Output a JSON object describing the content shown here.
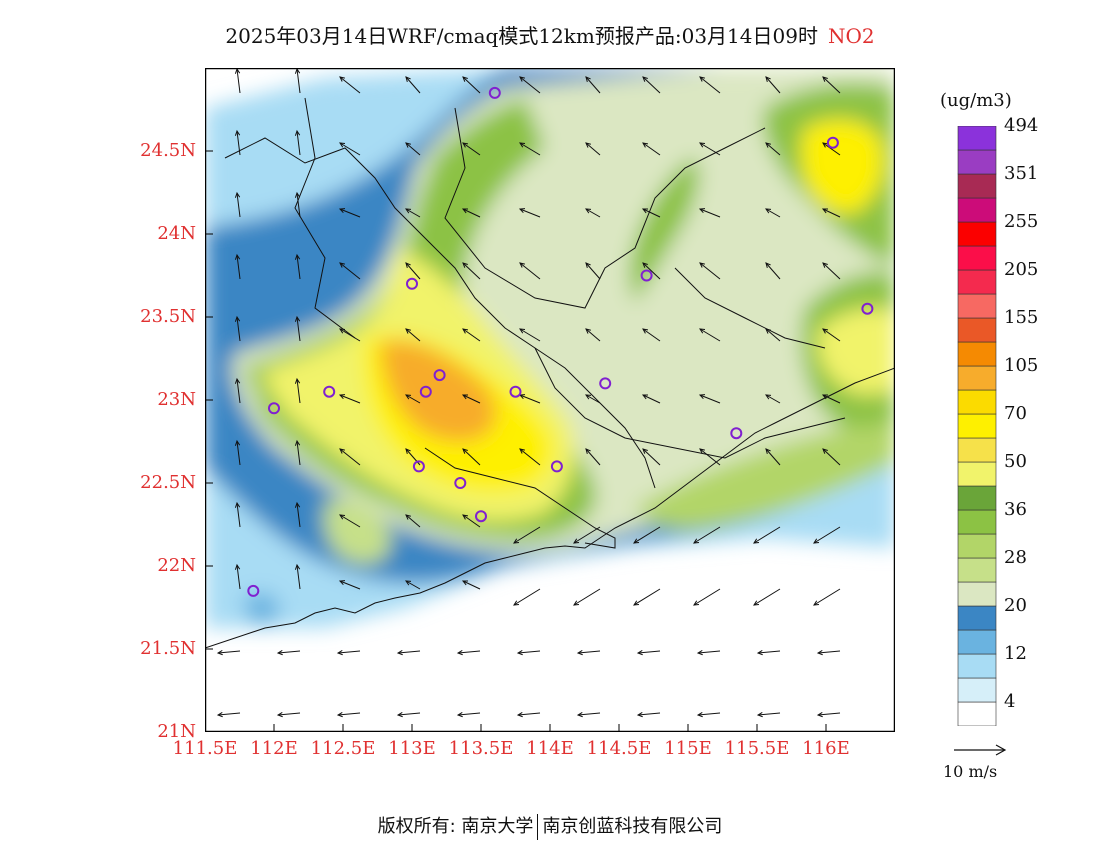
{
  "title": "2025年03月14日WRF/cmaq模式12km预报产品:03月14日09时",
  "pollutant": "NO2",
  "units": "(ug/m3)",
  "colorbar": {
    "colors": [
      "#ffffff",
      "#d6eff9",
      "#a8dcf4",
      "#6ab3e0",
      "#3b86c4",
      "#dbe7c2",
      "#c6e089",
      "#b2d568",
      "#8cc244",
      "#6aa539",
      "#f1f36b",
      "#f6e14a",
      "#fef000",
      "#fbdb00",
      "#f7ac2c",
      "#f58a02",
      "#ea5827",
      "#f76962",
      "#f42a4e",
      "#fb0e49",
      "#fb0000",
      "#cc0c79",
      "#a82a54",
      "#9a3dc2",
      "#8b32db"
    ],
    "labels": [
      "4",
      "12",
      "20",
      "28",
      "36",
      "50",
      "70",
      "105",
      "155",
      "205",
      "255",
      "351",
      "494"
    ]
  },
  "axes": {
    "lat_labels": [
      "21N",
      "21.5N",
      "22N",
      "22.5N",
      "23N",
      "23.5N",
      "24N",
      "24.5N"
    ],
    "lon_labels": [
      "111.5E",
      "112E",
      "112.5E",
      "113E",
      "113.5E",
      "114E",
      "114.5E",
      "115E",
      "115.5E",
      "116E"
    ]
  },
  "ref_vector": "10 m/s",
  "footer": {
    "left": "版权所有: 南京大学",
    "right": "南京创蓝科技有限公司"
  },
  "chart_data": {
    "type": "heatmap",
    "title": "2025年03月14日WRF/cmaq模式12km预报产品:03月14日09时 NO2",
    "units": "ug/m3",
    "xlim": [
      111.5,
      116.5
    ],
    "ylim": [
      21,
      25
    ],
    "hotspots": [
      {
        "lon": 113.1,
        "lat": 23.1,
        "value": 90
      },
      {
        "lon": 113.5,
        "lat": 22.9,
        "value": 80
      },
      {
        "lon": 112.6,
        "lat": 23.3,
        "value": 55
      },
      {
        "lon": 113.9,
        "lat": 22.6,
        "value": 55
      },
      {
        "lon": 116.2,
        "lat": 24.5,
        "value": 45
      },
      {
        "lon": 116.3,
        "lat": 23.3,
        "value": 45
      },
      {
        "lon": 114.7,
        "lat": 23.8,
        "value": 40
      }
    ],
    "sites": [
      {
        "lon": 113.6,
        "lat": 24.85
      },
      {
        "lon": 113.0,
        "lat": 23.7
      },
      {
        "lon": 113.2,
        "lat": 23.15
      },
      {
        "lon": 113.1,
        "lat": 23.05
      },
      {
        "lon": 113.75,
        "lat": 23.05
      },
      {
        "lon": 112.4,
        "lat": 23.05
      },
      {
        "lon": 112.0,
        "lat": 22.95
      },
      {
        "lon": 113.05,
        "lat": 22.6
      },
      {
        "lon": 113.35,
        "lat": 22.5
      },
      {
        "lon": 114.05,
        "lat": 22.6
      },
      {
        "lon": 113.5,
        "lat": 22.3
      },
      {
        "lon": 114.4,
        "lat": 23.1
      },
      {
        "lon": 114.7,
        "lat": 23.75
      },
      {
        "lon": 115.35,
        "lat": 22.8
      },
      {
        "lon": 116.05,
        "lat": 24.55
      },
      {
        "lon": 116.3,
        "lat": 23.55
      },
      {
        "lon": 111.85,
        "lat": 21.85
      }
    ]
  }
}
